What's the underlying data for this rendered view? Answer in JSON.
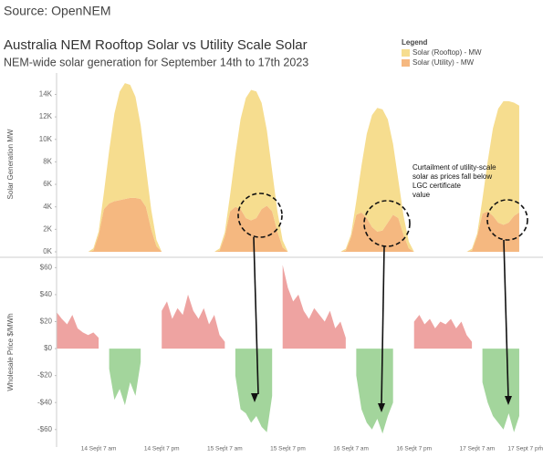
{
  "source": "Source: OpenNEM",
  "chart_data": [
    {
      "type": "stacked_area",
      "title": "Australia NEM Rooftop Solar vs Utility Scale Solar",
      "subtitle": "NEM-wide solar generation for September 14th to 17th 2023",
      "ylabel": "Solar Generation MW",
      "legend_title": "Legend",
      "legend": "top-right",
      "annotation": {
        "lines": [
          "Curtailment of utility-scale",
          "solar as prices fall below",
          "LGC certificate",
          "value"
        ]
      },
      "xlim": [
        -1,
        91
      ],
      "ylim": [
        0,
        15500
      ],
      "yticks": [
        {
          "value": 0,
          "label": "0K"
        },
        {
          "value": 2000,
          "label": "2K"
        },
        {
          "value": 4000,
          "label": "4K"
        },
        {
          "value": 6000,
          "label": "6K"
        },
        {
          "value": 8000,
          "label": "8K"
        },
        {
          "value": 10000,
          "label": "10K"
        },
        {
          "value": 12000,
          "label": "12K"
        },
        {
          "value": 14000,
          "label": "14K"
        }
      ],
      "x": [
        -1,
        0,
        1,
        2,
        3,
        4,
        5,
        6,
        7,
        8,
        9,
        10,
        11,
        12,
        13,
        14,
        15,
        16,
        17,
        18,
        19,
        20,
        21,
        22,
        23,
        24,
        25,
        26,
        27,
        28,
        29,
        30,
        31,
        32,
        33,
        34,
        35,
        36,
        37,
        38,
        39,
        40,
        41,
        42,
        43,
        44,
        45,
        46,
        47,
        48,
        49,
        50,
        51,
        52,
        53,
        54,
        55,
        56,
        57,
        58,
        59,
        60,
        61,
        62,
        63,
        64,
        65,
        66,
        67,
        68,
        69,
        70,
        71,
        72,
        73,
        74,
        75,
        76,
        77,
        78,
        79,
        80,
        81,
        82,
        83,
        84,
        85,
        86,
        87
      ],
      "series": [
        {
          "name": "Solar (Rooftop) - MW",
          "color": "#f6dd8f",
          "values": [
            0,
            0,
            0,
            0,
            0,
            0,
            0,
            200,
            300,
            1450,
            4700,
            7800,
            9650,
            10300,
            10050,
            9000,
            6550,
            3500,
            1750,
            550,
            0,
            0,
            0,
            0,
            0,
            0,
            0,
            0,
            0,
            0,
            0,
            190,
            330,
            1440,
            4640,
            8010,
            10680,
            11600,
            11260,
            9450,
            6700,
            3600,
            1800,
            610,
            0,
            0,
            0,
            0,
            0,
            0,
            0,
            0,
            0,
            0,
            0,
            160,
            240,
            1180,
            4180,
            7500,
            9960,
            11000,
            10770,
            9180,
            6300,
            3400,
            1700,
            600,
            0,
            0,
            0,
            0,
            0,
            0,
            0,
            0,
            0,
            0,
            0,
            170,
            210,
            1290,
            4440,
            7790,
            10130,
            11000,
            10800,
            10070,
            9500
          ]
        },
        {
          "name": "Solar (Utility) - MW",
          "color": "#f5b880",
          "values": [
            0,
            0,
            0,
            0,
            0,
            0,
            0,
            100,
            1500,
            3800,
            4300,
            4500,
            4600,
            4700,
            4800,
            4800,
            4700,
            4000,
            2000,
            500,
            0,
            0,
            0,
            0,
            0,
            0,
            0,
            0,
            0,
            0,
            0,
            100,
            1400,
            3600,
            4000,
            3800,
            3000,
            2800,
            3000,
            3800,
            4100,
            3600,
            1800,
            400,
            0,
            0,
            0,
            0,
            0,
            0,
            0,
            0,
            0,
            0,
            0,
            100,
            1300,
            3300,
            3500,
            3000,
            2200,
            1800,
            1900,
            2600,
            3300,
            3000,
            1500,
            300,
            0,
            0,
            0,
            0,
            0,
            0,
            0,
            0,
            0,
            0,
            0,
            100,
            1400,
            3400,
            3600,
            3200,
            2600,
            2400,
            2600,
            3200,
            3500
          ]
        }
      ]
    },
    {
      "type": "signed_area",
      "ylabel": "Wholesale Price $/MWh",
      "positive_color": "#eea3a1",
      "negative_color": "#a3d59c",
      "xlim": [
        -1,
        91
      ],
      "ylim": [
        -73,
        67
      ],
      "yticks": [
        {
          "value": 60,
          "label": "$60"
        },
        {
          "value": 40,
          "label": "$40"
        },
        {
          "value": 20,
          "label": "$20"
        },
        {
          "value": 0,
          "label": "$0"
        },
        {
          "value": -20,
          "label": "-$20"
        },
        {
          "value": -40,
          "label": "-$40"
        },
        {
          "value": -60,
          "label": "-$60"
        }
      ],
      "xticks": [
        {
          "value": 7,
          "label": "14 Sept 7 am"
        },
        {
          "value": 19,
          "label": "14 Sept 7 pm"
        },
        {
          "value": 31,
          "label": "15 Sept 7 am"
        },
        {
          "value": 43,
          "label": "15 Sept 7 pm"
        },
        {
          "value": 55,
          "label": "16 Sept 7 am"
        },
        {
          "value": 67,
          "label": "16 Sept 7 pm"
        },
        {
          "value": 79,
          "label": "17 Sept 7 am"
        },
        {
          "value": 91,
          "label": "17 Sept 7 pm"
        }
      ],
      "x": [
        -1,
        0,
        1,
        2,
        3,
        4,
        5,
        6,
        7,
        8,
        9,
        10,
        11,
        12,
        13,
        14,
        15,
        16,
        17,
        18,
        19,
        20,
        21,
        22,
        23,
        24,
        25,
        26,
        27,
        28,
        29,
        30,
        31,
        32,
        33,
        34,
        35,
        36,
        37,
        38,
        39,
        40,
        41,
        42,
        43,
        44,
        45,
        46,
        47,
        48,
        49,
        50,
        51,
        52,
        53,
        54,
        55,
        56,
        57,
        58,
        59,
        60,
        61,
        62,
        63,
        64,
        65,
        66,
        67,
        68,
        69,
        70,
        71,
        72,
        73,
        74,
        75,
        76,
        77,
        78,
        79,
        80,
        81,
        82,
        83,
        84,
        85,
        86,
        87
      ],
      "values": [
        27,
        22,
        18,
        25,
        15,
        12,
        10,
        12,
        8,
        null,
        -15,
        -38,
        -30,
        -42,
        -25,
        -35,
        -10,
        null,
        5,
        null,
        28,
        35,
        22,
        30,
        25,
        40,
        28,
        22,
        30,
        18,
        25,
        10,
        5,
        null,
        -20,
        -45,
        -48,
        -55,
        -50,
        -58,
        -62,
        -35,
        null,
        62,
        45,
        35,
        40,
        28,
        22,
        30,
        25,
        20,
        28,
        15,
        20,
        8,
        null,
        -20,
        -45,
        -55,
        -60,
        -52,
        -63,
        -50,
        -40,
        null,
        5,
        null,
        20,
        25,
        18,
        22,
        15,
        20,
        18,
        22,
        15,
        20,
        10,
        5,
        null,
        -25,
        -40,
        -50,
        -55,
        -60,
        -48,
        -62,
        -50
      ]
    }
  ]
}
